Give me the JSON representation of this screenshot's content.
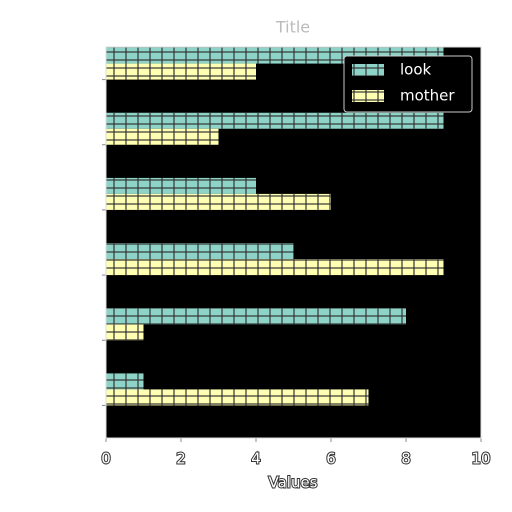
{
  "chart_data": {
    "type": "barh",
    "title": "Title",
    "xlabel": "Values",
    "categories": [
      null,
      null,
      null,
      null,
      null,
      null
    ],
    "series": [
      {
        "name": "look",
        "color": "#8dd3c7",
        "values": [
          9,
          9,
          4,
          5,
          8,
          1
        ]
      },
      {
        "name": "mother",
        "color": "#ffffb3",
        "values": [
          4,
          3,
          6,
          9,
          1,
          7
        ]
      }
    ],
    "xlim": [
      0,
      10
    ],
    "xticks": [
      0,
      2,
      4,
      6,
      8,
      10
    ],
    "legend": "upper right"
  }
}
